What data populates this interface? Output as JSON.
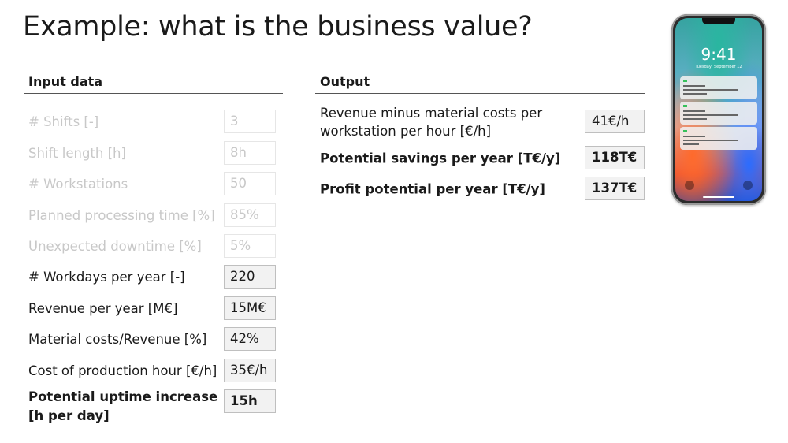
{
  "title": "Example: what is the business value?",
  "input": {
    "heading": "Input data",
    "rows": [
      {
        "label": "# Shifts [-]",
        "value": "3"
      },
      {
        "label": "Shift length [h]",
        "value": "8h"
      },
      {
        "label": "# Workstations",
        "value": "50"
      },
      {
        "label": "Planned processing time [%]",
        "value": "85%"
      },
      {
        "label": "Unexpected downtime [%]",
        "value": "5%"
      },
      {
        "label": "# Workdays per year [-]",
        "value": "220"
      },
      {
        "label": "Revenue per year [M€]",
        "value": "15M€"
      },
      {
        "label": "Material costs/Revenue [%]",
        "value": "42%"
      },
      {
        "label": "Cost of production hour [€/h]",
        "value": "35€/h"
      },
      {
        "label_line1": "Potential uptime increase",
        "label_line2": "[h per day]",
        "value": "15h"
      }
    ]
  },
  "output": {
    "heading": "Output",
    "rows": [
      {
        "label_line1": "Revenue minus material costs per",
        "label_line2": "workstation per hour [€/h]",
        "value": "41€/h"
      },
      {
        "label": "Potential savings per year [T€/y]",
        "value": "118T€"
      },
      {
        "label": "Profit potential per year [T€/y]",
        "value": "137T€"
      }
    ]
  },
  "phone": {
    "time": "9:41",
    "date": "Tuesday, September 12"
  }
}
